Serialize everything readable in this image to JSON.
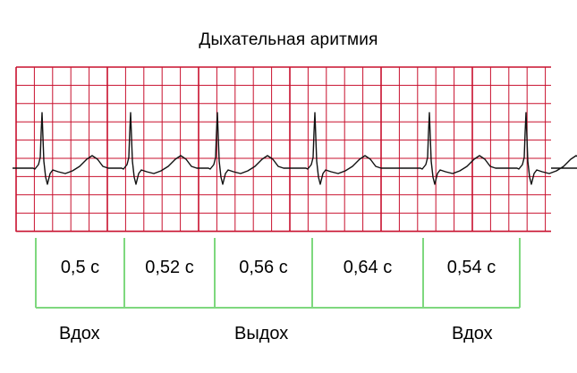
{
  "title": "Дыхательная аритмия",
  "grid_color": "#c8102e",
  "bracket_color": "#7ed87e",
  "trace_color": "#111111",
  "rr_intervals": [
    {
      "value": 0.5,
      "label": "0,5 с"
    },
    {
      "value": 0.52,
      "label": "0,52 с"
    },
    {
      "value": 0.56,
      "label": "0,56 с"
    },
    {
      "value": 0.64,
      "label": "0,64 с"
    },
    {
      "value": 0.54,
      "label": "0,54 с"
    }
  ],
  "phases": [
    "Вдох",
    "Выдох",
    "Вдох"
  ]
}
